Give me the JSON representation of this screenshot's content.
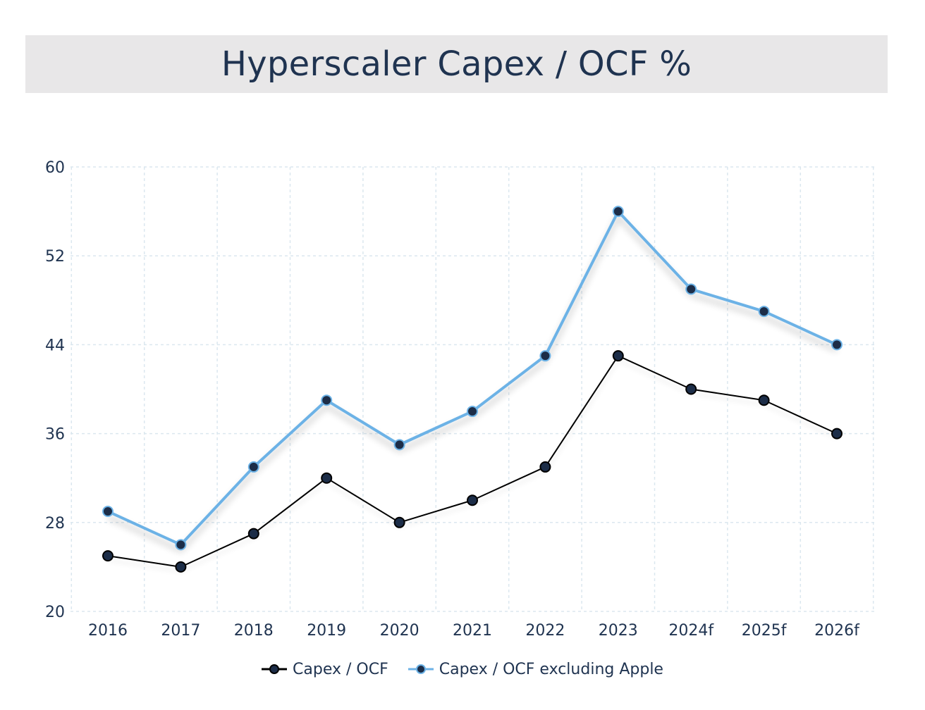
{
  "title": "Hyperscaler Capex / OCF %",
  "colors": {
    "series1_line": "#000000",
    "series2_line": "#6cb2e6",
    "marker_fill": "#1c2d48",
    "text": "#1f3350",
    "grid": "#dbe7ef"
  },
  "chart_data": {
    "type": "line",
    "title": "Hyperscaler Capex / OCF %",
    "categories": [
      "2016",
      "2017",
      "2018",
      "2019",
      "2020",
      "2021",
      "2022",
      "2023",
      "2024f",
      "2025f",
      "2026f"
    ],
    "series": [
      {
        "name": "Capex / OCF",
        "values": [
          25,
          24,
          27,
          32,
          28,
          30,
          33,
          43,
          40,
          39,
          36
        ]
      },
      {
        "name": "Capex / OCF excluding Apple",
        "values": [
          29,
          26,
          33,
          39,
          35,
          38,
          43,
          56,
          49,
          47,
          44
        ]
      }
    ],
    "yticks": [
      "20",
      "28",
      "36",
      "44",
      "52",
      "60"
    ],
    "ylim": [
      20,
      60
    ],
    "grid": true,
    "legend_position": "bottom"
  }
}
